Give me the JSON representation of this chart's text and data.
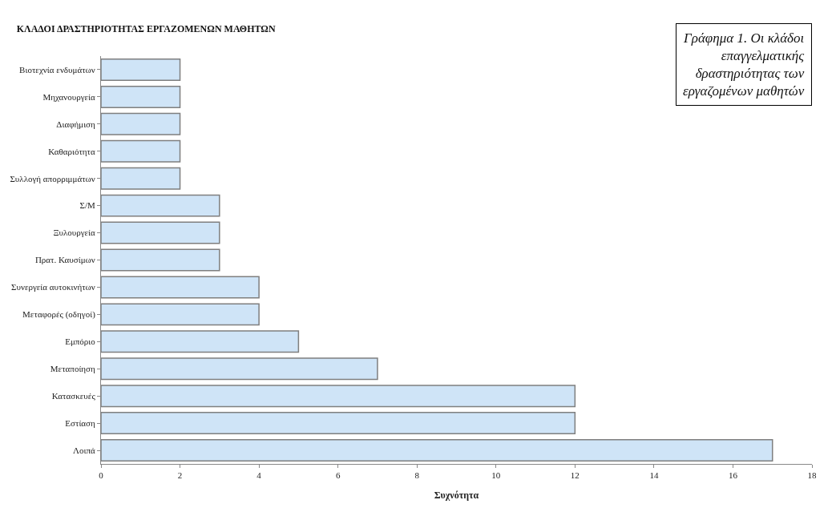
{
  "chart_data": {
    "type": "bar",
    "orientation": "horizontal",
    "title": "ΚΛΑΔΟΙ ΔΡΑΣΤΗΡΙΟΤΗΤΑΣ ΕΡΓΑΖΟΜΕΝΩΝ ΜΑΘΗΤΩΝ",
    "xlabel": "Συχνότητα",
    "annotations": [
      "Γράφημα 1. Οι κλάδοι επαγγελματικής δραστηριότητας των εργαζομένων μαθητών"
    ],
    "categories": [
      "Βιοτεχνία ενδυμάτων",
      "Μηχανουργεία",
      "Διαφήμιση",
      "Καθαριότητα",
      "Συλλογή απορριμμάτων",
      "Σ/Μ",
      "Ξυλουργεία",
      "Πρατ. Καυσίμων",
      "Συνεργεία αυτοκινήτων",
      "Μεταφορές (οδηγοί)",
      "Εμπόριο",
      "Μεταποίηση",
      "Κατασκευές",
      "Εστίαση",
      "Λοιπά"
    ],
    "values": [
      2,
      2,
      2,
      2,
      2,
      3,
      3,
      3,
      4,
      4,
      5,
      7,
      12,
      12,
      17
    ],
    "color": "#cfe4f7",
    "xlim": [
      0,
      18
    ],
    "xticks": [
      0,
      2,
      4,
      6,
      8,
      10,
      12,
      14,
      16,
      18
    ]
  }
}
